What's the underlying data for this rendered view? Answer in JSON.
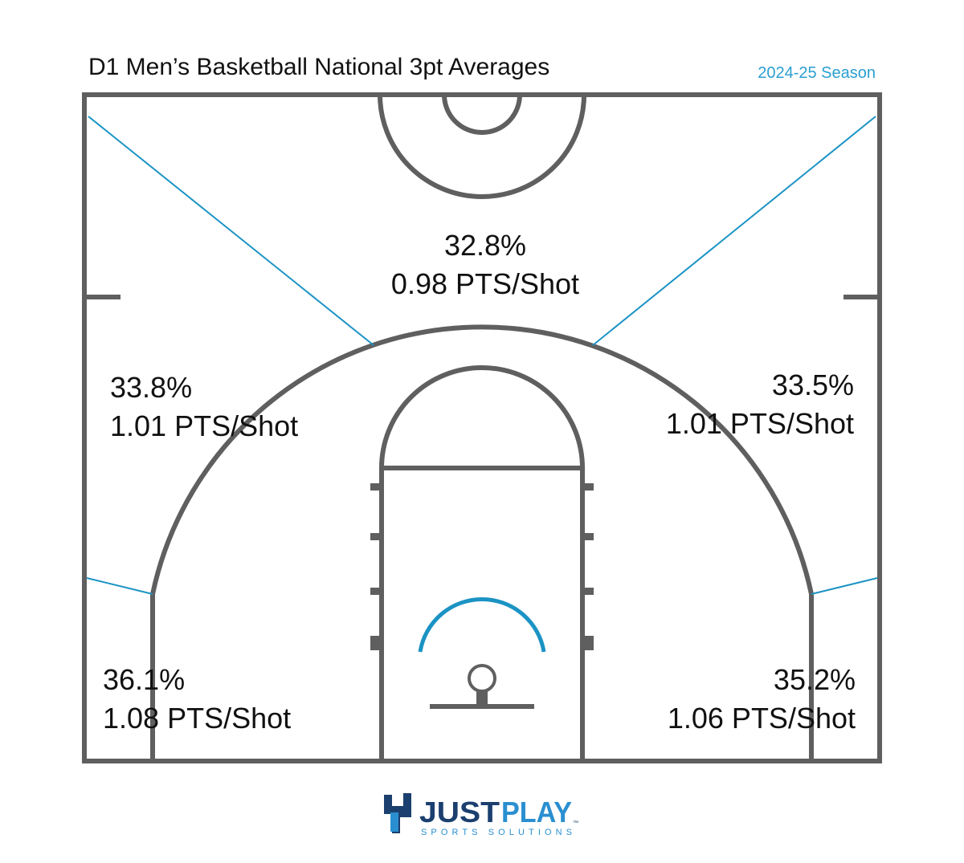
{
  "header": {
    "title": "D1 Men’s Basketball National 3pt Averages",
    "season": "2024-25 Season"
  },
  "zones": [
    {
      "pct": "32.8%",
      "pts": "0.98 PTS/Shot"
    },
    {
      "pct": "33.8%",
      "pts": "1.01 PTS/Shot"
    },
    {
      "pct": "33.5%",
      "pts": "1.01 PTS/Shot"
    },
    {
      "pct": "36.1%",
      "pts": "1.08 PTS/Shot"
    },
    {
      "pct": "35.2%",
      "pts": "1.06 PTS/Shot"
    }
  ],
  "logo": {
    "just": "JUST",
    "play": "PLAY",
    "tagline": "SPORTS SOLUTIONS",
    "mark": "™"
  }
}
